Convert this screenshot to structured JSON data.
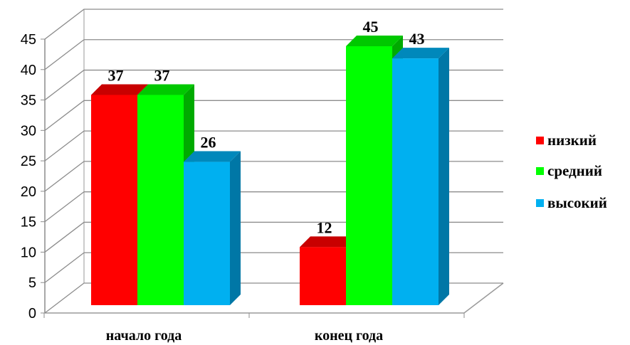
{
  "chart_data": {
    "type": "bar",
    "categories": [
      "начало года",
      "конец года"
    ],
    "series": [
      {
        "name": "низкий",
        "values": [
          37,
          12
        ],
        "color": "#ff0000",
        "side_color": "#c00000",
        "top_color": "#c80000"
      },
      {
        "name": "средний",
        "values": [
          37,
          45
        ],
        "color": "#00ff00",
        "side_color": "#00aa00",
        "top_color": "#00c800"
      },
      {
        "name": "высокий",
        "values": [
          26,
          43
        ],
        "color": "#00b0f0",
        "side_color": "#0077a6",
        "top_color": "#0088bb"
      }
    ],
    "ylim": [
      0,
      45
    ],
    "yticks": [
      "0",
      "5",
      "10",
      "15",
      "20",
      "25",
      "30",
      "35",
      "40",
      "45"
    ],
    "grid": true,
    "legend_position": "right",
    "three_d": true,
    "title": "",
    "xlabel": "",
    "ylabel": ""
  }
}
